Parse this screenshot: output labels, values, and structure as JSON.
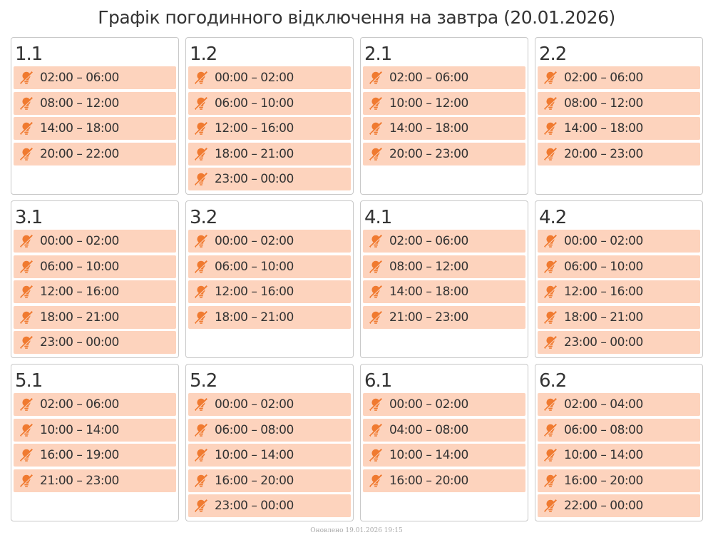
{
  "header": {
    "title": "Графік погодинного відключення на завтра (20.01.2026)"
  },
  "groups": [
    {
      "name": "1.1",
      "slots": [
        "02:00 – 06:00",
        "08:00 – 12:00",
        "14:00 – 18:00",
        "20:00 – 22:00"
      ]
    },
    {
      "name": "1.2",
      "slots": [
        "00:00 – 02:00",
        "06:00 – 10:00",
        "12:00 – 16:00",
        "18:00 – 21:00",
        "23:00 – 00:00"
      ]
    },
    {
      "name": "2.1",
      "slots": [
        "02:00 – 06:00",
        "10:00 – 12:00",
        "14:00 – 18:00",
        "20:00 – 23:00"
      ]
    },
    {
      "name": "2.2",
      "slots": [
        "02:00 – 06:00",
        "08:00 – 12:00",
        "14:00 – 18:00",
        "20:00 – 23:00"
      ]
    },
    {
      "name": "3.1",
      "slots": [
        "00:00 – 02:00",
        "06:00 – 10:00",
        "12:00 – 16:00",
        "18:00 – 21:00",
        "23:00 – 00:00"
      ]
    },
    {
      "name": "3.2",
      "slots": [
        "00:00 – 02:00",
        "06:00 – 10:00",
        "12:00 – 16:00",
        "18:00 – 21:00"
      ]
    },
    {
      "name": "4.1",
      "slots": [
        "02:00 – 06:00",
        "08:00 – 12:00",
        "14:00 – 18:00",
        "21:00 – 23:00"
      ]
    },
    {
      "name": "4.2",
      "slots": [
        "00:00 – 02:00",
        "06:00 – 10:00",
        "12:00 – 16:00",
        "18:00 – 21:00",
        "23:00 – 00:00"
      ]
    },
    {
      "name": "5.1",
      "slots": [
        "02:00 – 06:00",
        "10:00 – 14:00",
        "16:00 – 19:00",
        "21:00 – 23:00"
      ]
    },
    {
      "name": "5.2",
      "slots": [
        "00:00 – 02:00",
        "06:00 – 08:00",
        "10:00 – 14:00",
        "16:00 – 20:00",
        "23:00 – 00:00"
      ]
    },
    {
      "name": "6.1",
      "slots": [
        "00:00 – 02:00",
        "04:00 – 08:00",
        "10:00 – 14:00",
        "16:00 – 20:00"
      ]
    },
    {
      "name": "6.2",
      "slots": [
        "02:00 – 04:00",
        "06:00 – 08:00",
        "10:00 – 14:00",
        "16:00 – 20:00",
        "22:00 – 00:00"
      ]
    }
  ],
  "footer": {
    "updated": "Оновлено 19.01.2026 19:15"
  }
}
